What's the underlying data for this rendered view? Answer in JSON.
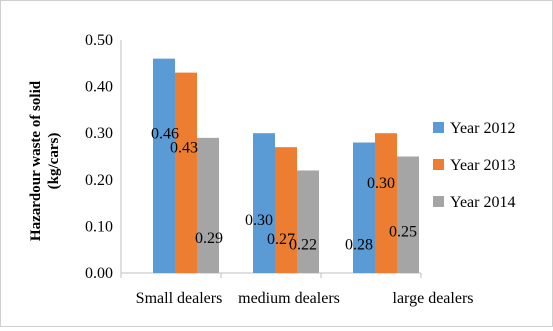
{
  "chart_data": {
    "type": "bar",
    "categories": [
      "Small dealers",
      "medium dealers",
      "large dealers"
    ],
    "series": [
      {
        "name": "Year 2012",
        "color": "#5B9BD5",
        "values": [
          0.46,
          0.3,
          0.28
        ],
        "labels": [
          "0.46",
          "0.30",
          "0.28"
        ]
      },
      {
        "name": "Year 2013",
        "color": "#ED7D31",
        "values": [
          0.43,
          0.27,
          0.3
        ],
        "labels": [
          "0.43",
          "0.27",
          "0.30"
        ]
      },
      {
        "name": "Year 2014",
        "color": "#A5A5A5",
        "values": [
          0.29,
          0.22,
          0.25
        ],
        "labels": [
          "0.29",
          "0.22",
          "0.25"
        ]
      }
    ],
    "ylabel_lines": [
      "Hazardour waste of solid",
      "(kg/cars)"
    ],
    "yticks": [
      "0.00",
      "0.10",
      "0.20",
      "0.30",
      "0.40",
      "0.50"
    ],
    "ylim": [
      0,
      0.5
    ],
    "legend_position": "right",
    "grid": false
  }
}
